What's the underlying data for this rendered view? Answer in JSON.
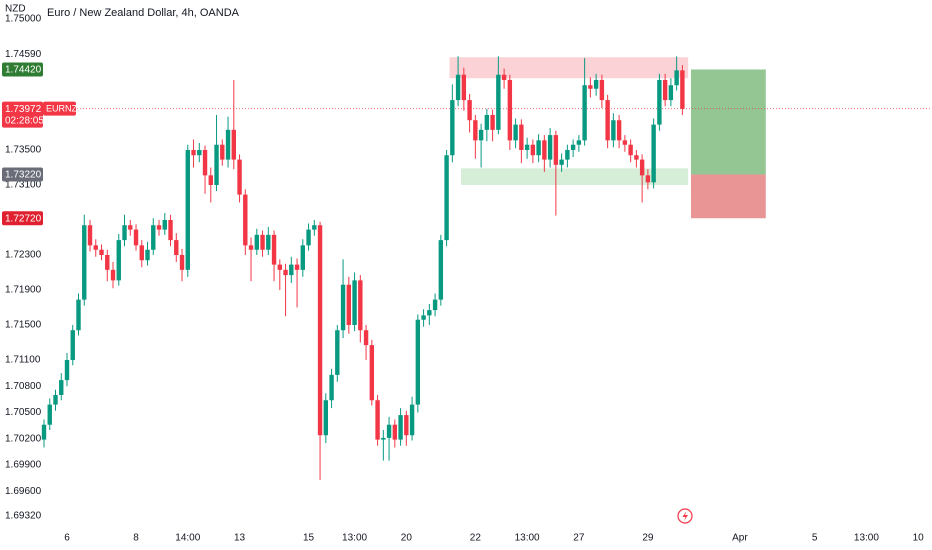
{
  "chart_data": {
    "type": "candlestick",
    "title": "Euro / New Zealand Dollar, 4h, OANDA",
    "unit": "NZD",
    "colors": {
      "up": "#089981",
      "down": "#f23645"
    },
    "open": [
      1.7019,
      1.7036,
      1.7059,
      1.707,
      1.7087,
      1.711,
      1.7144,
      1.7179,
      1.7264,
      1.7241,
      1.7236,
      1.723,
      1.7213,
      1.7201,
      1.7247,
      1.7264,
      1.7259,
      1.7241,
      1.7224,
      1.7236,
      1.7264,
      1.7259,
      1.727,
      1.7247,
      1.723,
      1.7213,
      1.735,
      1.7344,
      1.735,
      1.7321,
      1.731,
      1.7356,
      1.7339,
      1.7373,
      1.7339,
      1.7299,
      1.7241,
      1.7236,
      1.7253,
      1.7236,
      1.7253,
      1.7219,
      1.7213,
      1.7207,
      1.7219,
      1.7213,
      1.7241,
      1.7259,
      1.7264,
      1.7024,
      1.7064,
      1.7093,
      1.7144,
      1.7196,
      1.715,
      1.7201,
      1.7144,
      1.7127,
      1.7064,
      1.7019,
      1.7021,
      1.7036,
      1.7019,
      1.7047,
      1.7024,
      1.7059,
      1.7156,
      1.7161,
      1.7167,
      1.7179,
      1.7247,
      1.7344,
      1.7407,
      1.7436,
      1.7407,
      1.7384,
      1.7361,
      1.7373,
      1.739,
      1.7373,
      1.7436,
      1.743,
      1.7361,
      1.7379,
      1.735,
      1.7356,
      1.7344,
      1.7361,
      1.7339,
      1.7367,
      1.7333,
      1.7339,
      1.735,
      1.7356,
      1.7361,
      1.7424,
      1.742,
      1.743,
      1.7407,
      1.7361,
      1.7384,
      1.7361,
      1.7356,
      1.7344,
      1.7339,
      1.7321,
      1.7313,
      1.7379,
      1.743,
      1.7407,
      1.7424,
      1.7441
    ],
    "high": [
      1.7042,
      1.7066,
      1.7076,
      1.7095,
      1.7118,
      1.715,
      1.7186,
      1.7276,
      1.727,
      1.7248,
      1.7242,
      1.7236,
      1.7222,
      1.7254,
      1.7276,
      1.727,
      1.7265,
      1.7247,
      1.7245,
      1.7272,
      1.727,
      1.7278,
      1.7276,
      1.7255,
      1.7237,
      1.7356,
      1.7362,
      1.7358,
      1.7355,
      1.733,
      1.739,
      1.7362,
      1.7388,
      1.743,
      1.7345,
      1.7305,
      1.725,
      1.726,
      1.7258,
      1.7262,
      1.7258,
      1.7225,
      1.722,
      1.7228,
      1.7226,
      1.7248,
      1.7266,
      1.727,
      1.7268,
      1.7072,
      1.71,
      1.715,
      1.7225,
      1.7205,
      1.721,
      1.7207,
      1.715,
      1.7133,
      1.707,
      1.703,
      1.7045,
      1.7042,
      1.7055,
      1.7052,
      1.7068,
      1.7162,
      1.7168,
      1.7174,
      1.7186,
      1.7253,
      1.735,
      1.7425,
      1.7457,
      1.7444,
      1.7414,
      1.739,
      1.738,
      1.7397,
      1.7396,
      1.7457,
      1.7443,
      1.7436,
      1.7386,
      1.7385,
      1.7364,
      1.7362,
      1.7368,
      1.7367,
      1.7375,
      1.7372,
      1.7346,
      1.7356,
      1.7362,
      1.7367,
      1.7455,
      1.7433,
      1.7437,
      1.7436,
      1.7413,
      1.7392,
      1.739,
      1.7367,
      1.7362,
      1.735,
      1.7345,
      1.7328,
      1.7386,
      1.7437,
      1.7437,
      1.7432,
      1.7457,
      1.7447
    ],
    "low": [
      1.701,
      1.703,
      1.7052,
      1.7064,
      1.708,
      1.7104,
      1.7138,
      1.7172,
      1.7234,
      1.7228,
      1.7224,
      1.72,
      1.7192,
      1.7195,
      1.724,
      1.7252,
      1.7235,
      1.7216,
      1.7218,
      1.723,
      1.7252,
      1.7253,
      1.724,
      1.7222,
      1.72,
      1.7205,
      1.733,
      1.7336,
      1.73,
      1.729,
      1.7303,
      1.7332,
      1.733,
      1.7328,
      1.729,
      1.723,
      1.72,
      1.723,
      1.7228,
      1.723,
      1.72,
      1.719,
      1.716,
      1.7198,
      1.717,
      1.7205,
      1.7235,
      1.7252,
      1.6973,
      1.7015,
      1.7055,
      1.7085,
      1.7135,
      1.714,
      1.7143,
      1.713,
      1.711,
      1.7058,
      1.7012,
      1.6995,
      1.6995,
      1.701,
      1.7012,
      1.7012,
      1.7018,
      1.705,
      1.7148,
      1.715,
      1.716,
      1.7172,
      1.724,
      1.7336,
      1.74,
      1.7395,
      1.737,
      1.734,
      1.733,
      1.736,
      1.736,
      1.7368,
      1.742,
      1.735,
      1.7352,
      1.7335,
      1.734,
      1.7335,
      1.7336,
      1.7325,
      1.733,
      1.7275,
      1.7325,
      1.733,
      1.7342,
      1.7348,
      1.7355,
      1.741,
      1.7412,
      1.7398,
      1.7352,
      1.7353,
      1.7352,
      1.7348,
      1.7336,
      1.733,
      1.729,
      1.7305,
      1.7306,
      1.7372,
      1.74,
      1.74,
      1.7418,
      1.739
    ],
    "close": [
      1.7036,
      1.7059,
      1.707,
      1.7087,
      1.711,
      1.7144,
      1.7179,
      1.7264,
      1.7241,
      1.7236,
      1.723,
      1.7213,
      1.7201,
      1.7247,
      1.7264,
      1.7259,
      1.7241,
      1.7224,
      1.7236,
      1.7264,
      1.7259,
      1.727,
      1.7247,
      1.723,
      1.7213,
      1.735,
      1.7344,
      1.735,
      1.7321,
      1.731,
      1.7356,
      1.7339,
      1.7373,
      1.7339,
      1.7299,
      1.7241,
      1.7236,
      1.7253,
      1.7236,
      1.7253,
      1.7219,
      1.7213,
      1.7207,
      1.7219,
      1.7213,
      1.7241,
      1.7259,
      1.7264,
      1.7024,
      1.7064,
      1.7093,
      1.7144,
      1.7196,
      1.715,
      1.7201,
      1.7144,
      1.7127,
      1.7064,
      1.7019,
      1.7021,
      1.7036,
      1.7019,
      1.7047,
      1.7024,
      1.7059,
      1.7156,
      1.7161,
      1.7167,
      1.7179,
      1.7247,
      1.7344,
      1.7407,
      1.7436,
      1.7407,
      1.7384,
      1.7361,
      1.7373,
      1.739,
      1.7373,
      1.7436,
      1.743,
      1.7361,
      1.7379,
      1.735,
      1.7356,
      1.7344,
      1.7361,
      1.7339,
      1.7367,
      1.7333,
      1.7339,
      1.735,
      1.7356,
      1.7361,
      1.7424,
      1.742,
      1.743,
      1.7407,
      1.7361,
      1.7384,
      1.7361,
      1.7356,
      1.7344,
      1.7339,
      1.7321,
      1.7313,
      1.7379,
      1.743,
      1.7407,
      1.7424,
      1.7441,
      1.7397
    ],
    "xlim": [
      0,
      154.4
    ],
    "xticks": [
      {
        "value": 4,
        "label": "6"
      },
      {
        "value": 16,
        "label": "8"
      },
      {
        "value": 25,
        "label": "14:00"
      },
      {
        "value": 34,
        "label": "13"
      },
      {
        "value": 46,
        "label": "15"
      },
      {
        "value": 54,
        "label": "13:00"
      },
      {
        "value": 63,
        "label": "20"
      },
      {
        "value": 75,
        "label": "22"
      },
      {
        "value": 84,
        "label": "13:00"
      },
      {
        "value": 93,
        "label": "27"
      },
      {
        "value": 105,
        "label": "29"
      },
      {
        "value": 121,
        "label": "Apr"
      },
      {
        "value": 134,
        "label": "5"
      },
      {
        "value": 143,
        "label": "13:00"
      },
      {
        "value": 152,
        "label": "10"
      }
    ],
    "ylim": [
      1.69157,
      1.75214
    ],
    "yticks": [
      {
        "value": 1.75,
        "label": "1.75000"
      },
      {
        "value": 1.7459,
        "label": "1.74590"
      },
      {
        "value": 1.735,
        "label": "1.73500"
      },
      {
        "value": 1.731,
        "label": "1.73100"
      },
      {
        "value": 1.723,
        "label": "1.72300"
      },
      {
        "value": 1.719,
        "label": "1.71900"
      },
      {
        "value": 1.715,
        "label": "1.71500"
      },
      {
        "value": 1.711,
        "label": "1.71100"
      },
      {
        "value": 1.708,
        "label": "1.70800"
      },
      {
        "value": 1.705,
        "label": "1.70500"
      },
      {
        "value": 1.702,
        "label": "1.70200"
      },
      {
        "value": 1.699,
        "label": "1.69900"
      },
      {
        "value": 1.696,
        "label": "1.69600"
      },
      {
        "value": 1.6932,
        "label": "1.69320"
      }
    ],
    "grid": false,
    "zones": [
      {
        "top": 1.7456,
        "bottom": 1.7432,
        "from": 70.5,
        "to": 112,
        "color": "#fbd3d6"
      },
      {
        "top": 1.7329,
        "bottom": 1.731,
        "from": 72.5,
        "to": 112,
        "color": "#d6eed8"
      },
      {
        "top": 1.7442,
        "bottom": 1.7322,
        "from": 112.5,
        "to": 125.5,
        "color": "#93c693"
      },
      {
        "top": 1.7322,
        "bottom": 1.7272,
        "from": 112.5,
        "to": 125.5,
        "color": "#e99595"
      }
    ],
    "price_labels": [
      {
        "value": 1.7442,
        "label": "1.74420",
        "color": "#2e7d32"
      },
      {
        "value": 1.73972,
        "label": "1.73972",
        "color": "#f23645",
        "line": true,
        "ticker": "EURNZD",
        "countdown": "02:28:05"
      },
      {
        "value": 1.7322,
        "label": "1.73220",
        "color": "#6a6d78"
      },
      {
        "value": 1.7272,
        "label": "1.72720",
        "color": "#e0202f"
      }
    ]
  }
}
